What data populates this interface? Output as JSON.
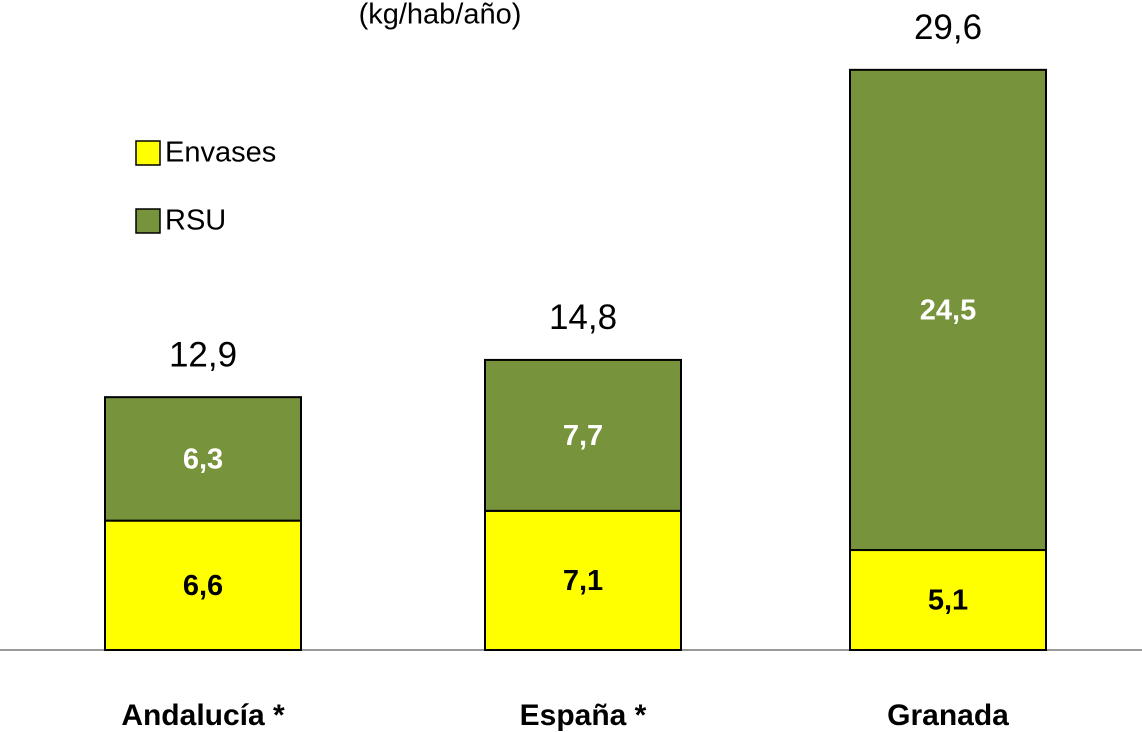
{
  "chart_data": {
    "type": "stacked_bar",
    "title": "(kg/hab/año)",
    "categories": [
      "Andalucía *",
      "España *",
      "Granada"
    ],
    "series": [
      {
        "name": "Envases",
        "color": "#ffff00",
        "values": [
          6.6,
          7.1,
          5.1
        ],
        "value_labels": [
          "6,6",
          "7,1",
          "5,1"
        ]
      },
      {
        "name": "RSU",
        "color": "#77933c",
        "values": [
          6.3,
          7.7,
          24.5
        ],
        "value_labels": [
          "6,3",
          "7,7",
          "24,5"
        ]
      }
    ],
    "totals": [
      12.9,
      14.8,
      29.6
    ],
    "total_labels": [
      "12,9",
      "14,8",
      "29,6"
    ],
    "ylim": [
      0,
      30
    ],
    "legend": "upper left"
  }
}
